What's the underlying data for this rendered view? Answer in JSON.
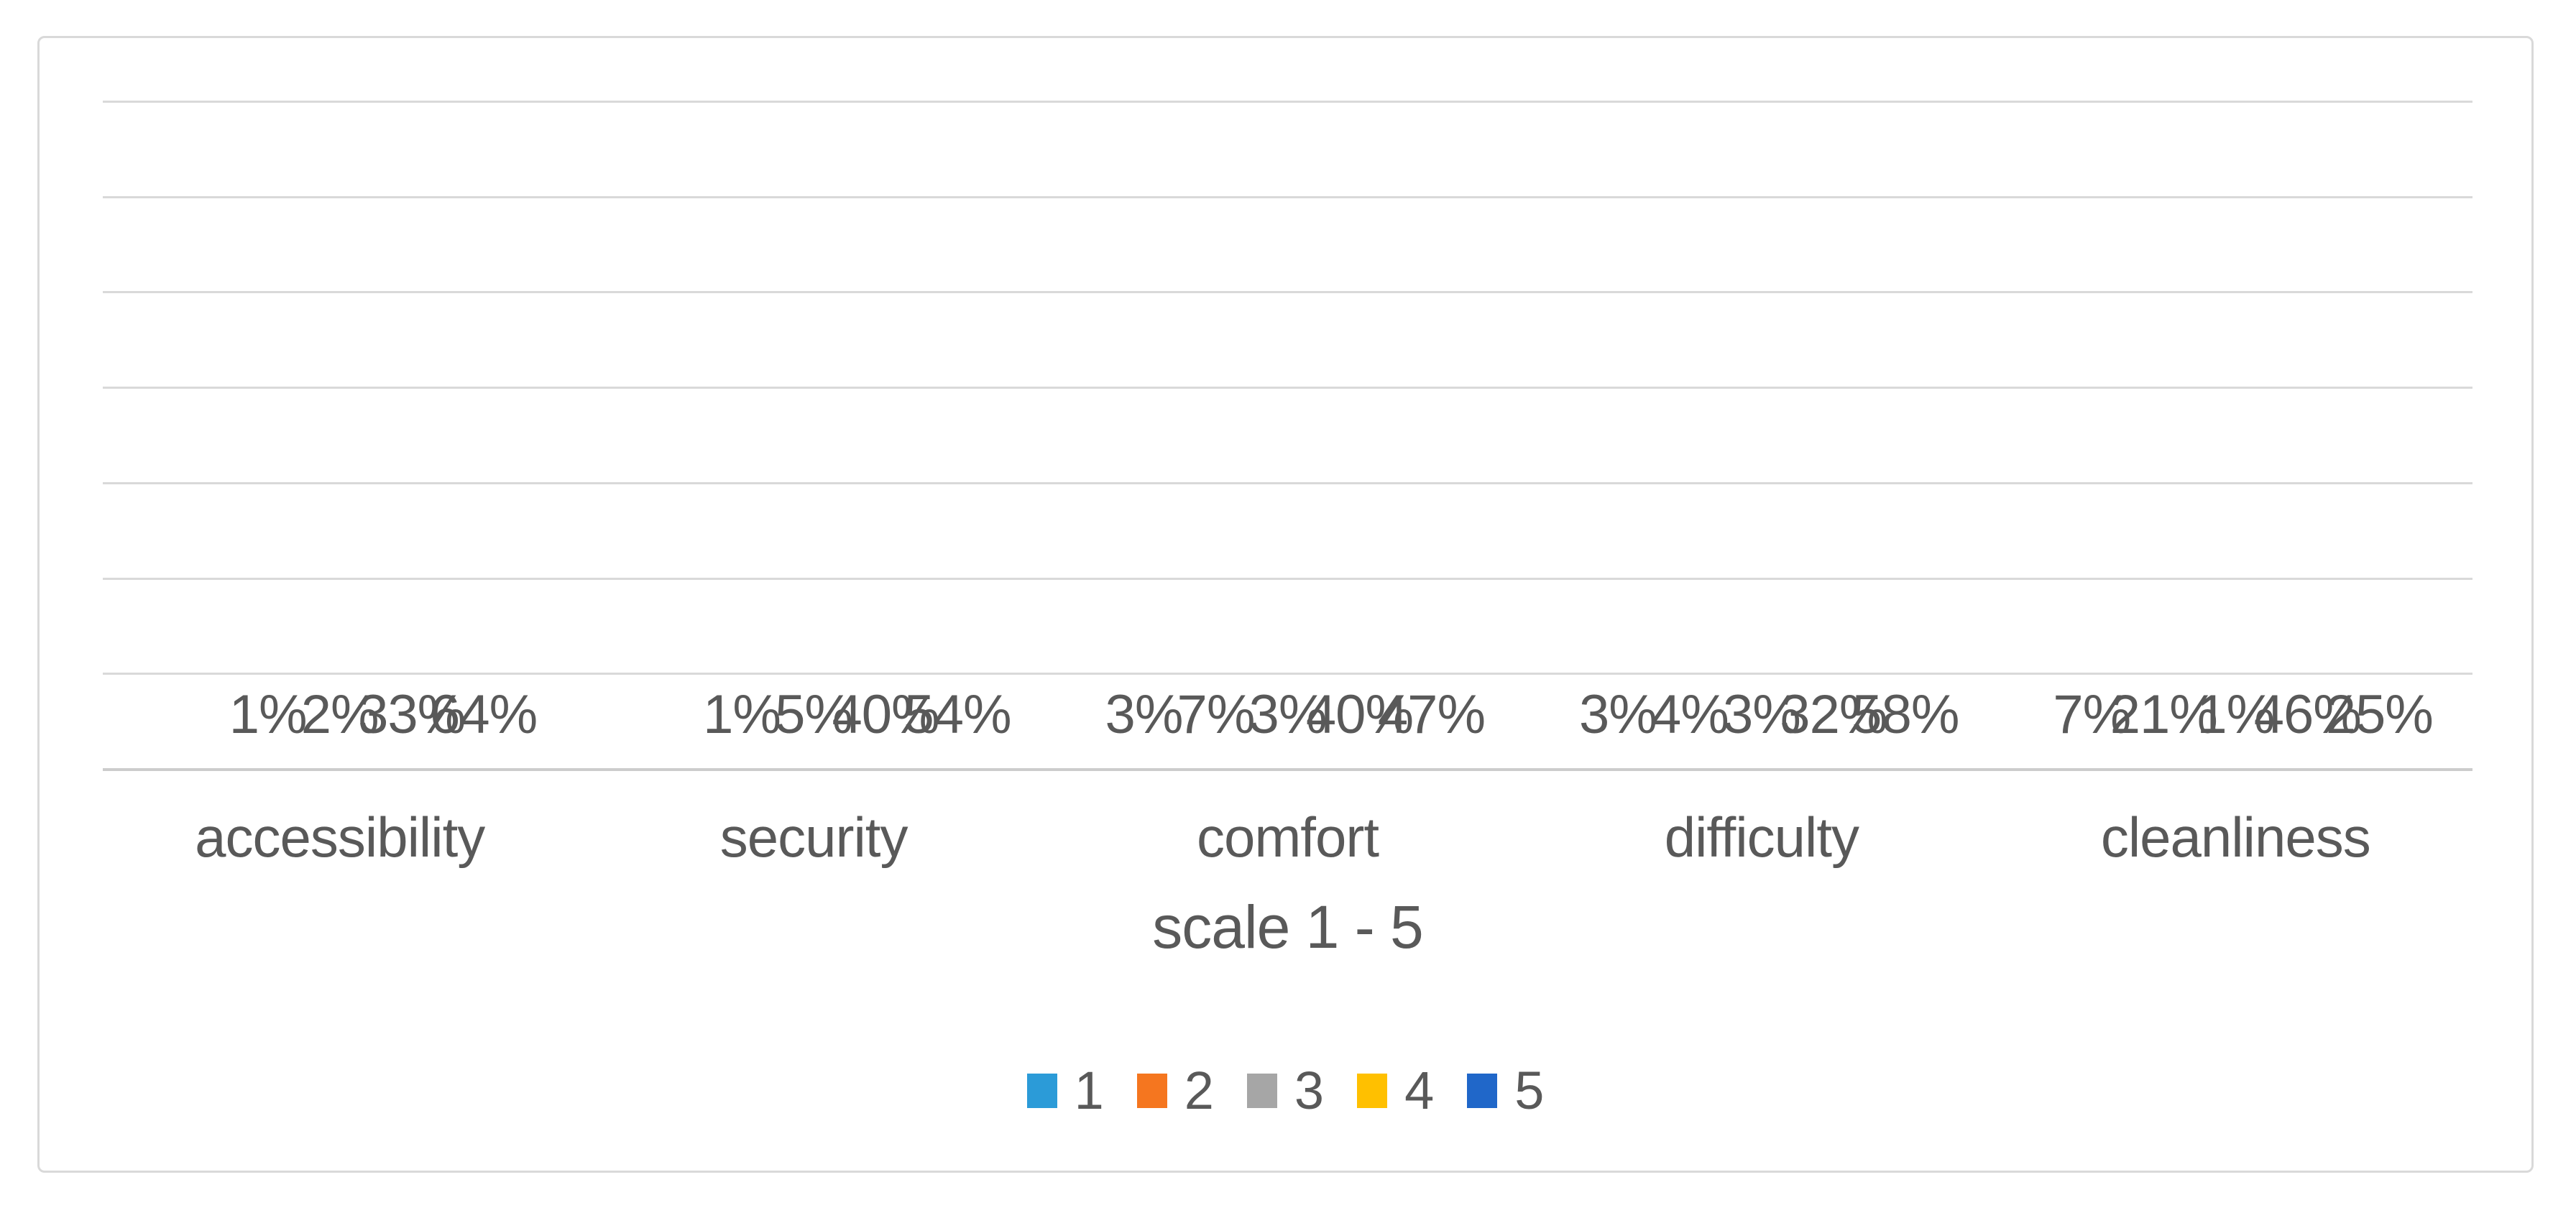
{
  "chart_data": {
    "type": "bar",
    "title": "",
    "categories": [
      "accessibility",
      "security",
      "comfort",
      "difficulty",
      "cleanliness"
    ],
    "series": [
      {
        "name": "1",
        "color": "#2b9bd8",
        "values": [
          0,
          0,
          3,
          3,
          7
        ]
      },
      {
        "name": "2",
        "color": "#f5761f",
        "values": [
          1,
          1,
          7,
          4,
          21
        ]
      },
      {
        "name": "3",
        "color": "#a6a6a6",
        "values": [
          2,
          5,
          3,
          3,
          1
        ]
      },
      {
        "name": "4",
        "color": "#ffc000",
        "values": [
          33,
          40,
          40,
          32,
          46
        ]
      },
      {
        "name": "5",
        "color": "#2067c9",
        "values": [
          64,
          54,
          47,
          58,
          25
        ]
      }
    ],
    "value_suffix": "%",
    "data_labels": true,
    "hide_zero_labels": true,
    "xlabel": "scale 1 - 5",
    "ylabel": "",
    "ylim": [
      0,
      70
    ],
    "gridline_step": 10,
    "grid": true,
    "legend_position": "bottom",
    "legend_entries": [
      "1",
      "2",
      "3",
      "4",
      "5"
    ]
  },
  "colors": {
    "background": "#ffffff",
    "frame_border": "#d9d9d9",
    "gridline": "#d9d9d9",
    "axis_line": "#cccccc",
    "text": "#595959"
  }
}
